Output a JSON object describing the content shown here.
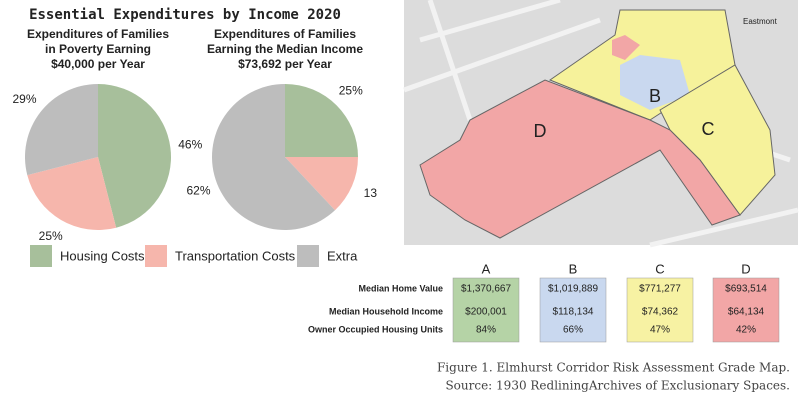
{
  "figure_title": "Essential Expenditures by Income 2020",
  "legend": {
    "categories": [
      "Housing Costs",
      "Transportation Costs",
      "Extra"
    ],
    "colors": [
      "#a7bf9b",
      "#f6b6ac",
      "#bdbdbd"
    ]
  },
  "chart_data": [
    {
      "type": "pie",
      "title": [
        "Expenditures of Families",
        "in Poverty Earning",
        "$40,000 per Year"
      ],
      "values": [
        46,
        25,
        29
      ],
      "value_labels": [
        "46%",
        "25%",
        "29%"
      ]
    },
    {
      "type": "pie",
      "title": [
        "Expenditures of Families",
        "Earning the Median Income",
        "$73,692 per Year"
      ],
      "values": [
        25,
        13,
        62
      ],
      "value_labels": [
        "25%",
        "13",
        "62%"
      ]
    }
  ],
  "map": {
    "labels": [
      "B",
      "C",
      "D"
    ],
    "street": "Eastmont"
  },
  "table": {
    "columns": [
      "A",
      "B",
      "C",
      "D"
    ],
    "colors": [
      "#b5d3a6",
      "#c9d8ef",
      "#f7f2a3",
      "#f2a6a6"
    ],
    "rows": [
      [
        "Median Home Value",
        "$1,370,667",
        "$1,019,889",
        "$771,277",
        "$693,514"
      ],
      [
        "Median Household Income",
        "$200,001",
        "$118,134",
        "$74,362",
        "$64,134"
      ],
      [
        "Owner Occupied Housing Units",
        "84%",
        "66%",
        "47%",
        "42%"
      ]
    ]
  },
  "caption": [
    "Figure 1. Elmhurst Corridor Risk Assessment Grade Map.",
    "Source: 1930 RedliningArchives of Exclusionary Spaces."
  ]
}
